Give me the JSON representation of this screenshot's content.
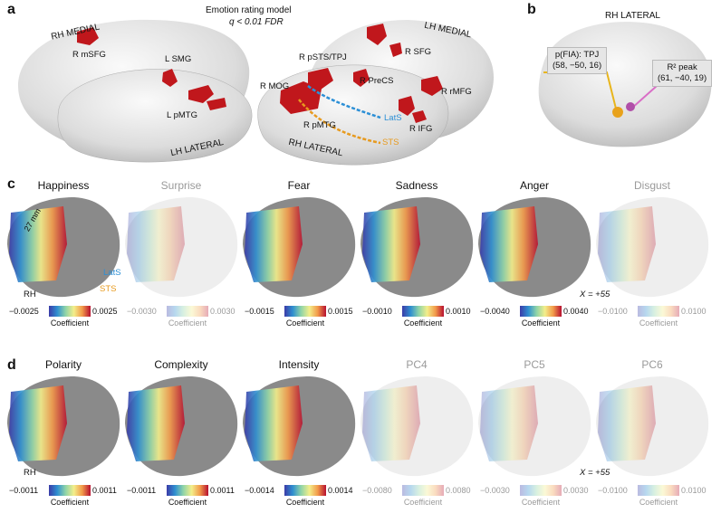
{
  "panels": {
    "a": "a",
    "b": "b",
    "c": "c",
    "d": "d"
  },
  "panel_a": {
    "title_line1": "Emotion rating model",
    "title_line2": "q < 0.01 FDR",
    "rh_medial": "RH MEDIAL",
    "lh_medial": "LH MEDIAL",
    "lh_lateral": "LH LATERAL",
    "rh_lateral": "RH LATERAL",
    "regions": {
      "r_msfg": "R mSFG",
      "l_smg": "L SMG",
      "l_pmtg": "L pMTG",
      "r_mog": "R MOG",
      "r_psts": "R pSTS/TPJ",
      "r_precs": "R PreCS",
      "r_sfg": "R SFG",
      "r_mfg": "R rMFG",
      "r_pmtg": "R pMTG",
      "r_ifg": "R IFG",
      "lats": "LatS",
      "sts": "STS"
    }
  },
  "panel_b": {
    "title": "RH LATERAL",
    "pfia_line1": "p(FIA): TPJ",
    "pfia_line2": "(58, −50, 16)",
    "r2_line1": "R² peak",
    "r2_line2": "(61, −40, 19)"
  },
  "panel_c": {
    "annotations": {
      "mm": "27 mm",
      "lats": "LatS",
      "sts": "STS",
      "rh": "RH",
      "x": "X = +55"
    },
    "maps": [
      {
        "title": "Happiness",
        "min": "−0.0025",
        "max": "0.0025",
        "label": "Coefficient",
        "faded": false
      },
      {
        "title": "Surprise",
        "min": "−0.0030",
        "max": "0.0030",
        "label": "Coefficient",
        "faded": true
      },
      {
        "title": "Fear",
        "min": "−0.0015",
        "max": "0.0015",
        "label": "Coefficient",
        "faded": false
      },
      {
        "title": "Sadness",
        "min": "−0.0010",
        "max": "0.0010",
        "label": "Coefficient",
        "faded": false
      },
      {
        "title": "Anger",
        "min": "−0.0040",
        "max": "0.0040",
        "label": "Coefficient",
        "faded": false
      },
      {
        "title": "Disgust",
        "min": "−0.0100",
        "max": "0.0100",
        "label": "Coefficient",
        "faded": true
      }
    ]
  },
  "panel_d": {
    "annotations": {
      "rh": "RH",
      "x": "X = +55"
    },
    "maps": [
      {
        "title": "Polarity",
        "min": "−0.0011",
        "max": "0.0011",
        "label": "Coefficient",
        "faded": false
      },
      {
        "title": "Complexity",
        "min": "−0.0011",
        "max": "0.0011",
        "label": "Coefficient",
        "faded": false
      },
      {
        "title": "Intensity",
        "min": "−0.0014",
        "max": "0.0014",
        "label": "Coefficient",
        "faded": false
      },
      {
        "title": "PC4",
        "min": "−0.0080",
        "max": "0.0080",
        "label": "Coefficient",
        "faded": true
      },
      {
        "title": "PC5",
        "min": "−0.0030",
        "max": "0.0030",
        "label": "Coefficient",
        "faded": true
      },
      {
        "title": "PC6",
        "min": "−0.0100",
        "max": "0.0100",
        "label": "Coefficient",
        "faded": true
      }
    ]
  },
  "colors": {
    "activation_red": "#c0171c",
    "lats_blue": "#2b8fd6",
    "sts_orange": "#e79a1e",
    "tpj_gold": "#e8b51c",
    "r2_magenta": "#d96fc6"
  }
}
